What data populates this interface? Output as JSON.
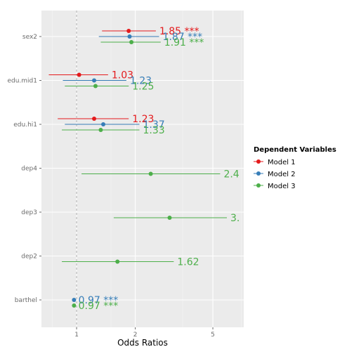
{
  "chart_data": {
    "type": "scatter",
    "xlabel": "Odds Ratios",
    "x_scale": "log",
    "xlim": [
      0.66,
      7.2
    ],
    "x_ticks": [
      "1",
      "2",
      "5"
    ],
    "reference_line": 1,
    "grid": true,
    "legend_position": "right",
    "legend_title": "Dependent Variables",
    "categories": [
      "sex2",
      "edu.mid1",
      "edu.hi1",
      "dep4",
      "dep3",
      "dep2",
      "barthel"
    ],
    "series": [
      {
        "name": "Model 1",
        "color": "#e41a1c",
        "points": [
          {
            "term": "sex2",
            "estimate": 1.85,
            "low": 1.35,
            "high": 2.55,
            "label": "1.85 ***"
          },
          {
            "term": "edu.mid1",
            "estimate": 1.03,
            "low": 0.72,
            "high": 1.45,
            "label": "1.03"
          },
          {
            "term": "edu.hi1",
            "estimate": 1.23,
            "low": 0.8,
            "high": 1.85,
            "label": "1.23"
          }
        ]
      },
      {
        "name": "Model 2",
        "color": "#377eb8",
        "points": [
          {
            "term": "sex2",
            "estimate": 1.87,
            "low": 1.3,
            "high": 2.65,
            "label": "1.87 ***"
          },
          {
            "term": "edu.mid1",
            "estimate": 1.23,
            "low": 0.85,
            "high": 1.8,
            "label": "1.23"
          },
          {
            "term": "edu.hi1",
            "estimate": 1.37,
            "low": 0.87,
            "high": 2.1,
            "label": "1.37"
          },
          {
            "term": "barthel",
            "estimate": 0.97,
            "low": 0.96,
            "high": 0.98,
            "label": "0.97 ***"
          }
        ]
      },
      {
        "name": "Model 3",
        "color": "#4daf4a",
        "points": [
          {
            "term": "sex2",
            "estimate": 1.91,
            "low": 1.33,
            "high": 2.7,
            "label": "1.91 ***"
          },
          {
            "term": "edu.mid1",
            "estimate": 1.25,
            "low": 0.87,
            "high": 1.85,
            "label": "1.25"
          },
          {
            "term": "edu.hi1",
            "estimate": 1.33,
            "low": 0.84,
            "high": 2.1,
            "label": "1.33"
          },
          {
            "term": "dep4",
            "estimate": 2.4,
            "low": 1.06,
            "high": 5.45,
            "label": "2.4"
          },
          {
            "term": "dep3",
            "estimate": 3.0,
            "low": 1.55,
            "high": 5.9,
            "label": "3."
          },
          {
            "term": "dep2",
            "estimate": 1.62,
            "low": 0.84,
            "high": 3.15,
            "label": "1.62"
          },
          {
            "term": "barthel",
            "estimate": 0.97,
            "low": 0.96,
            "high": 0.98,
            "label": "0.97 ***"
          }
        ]
      }
    ]
  }
}
